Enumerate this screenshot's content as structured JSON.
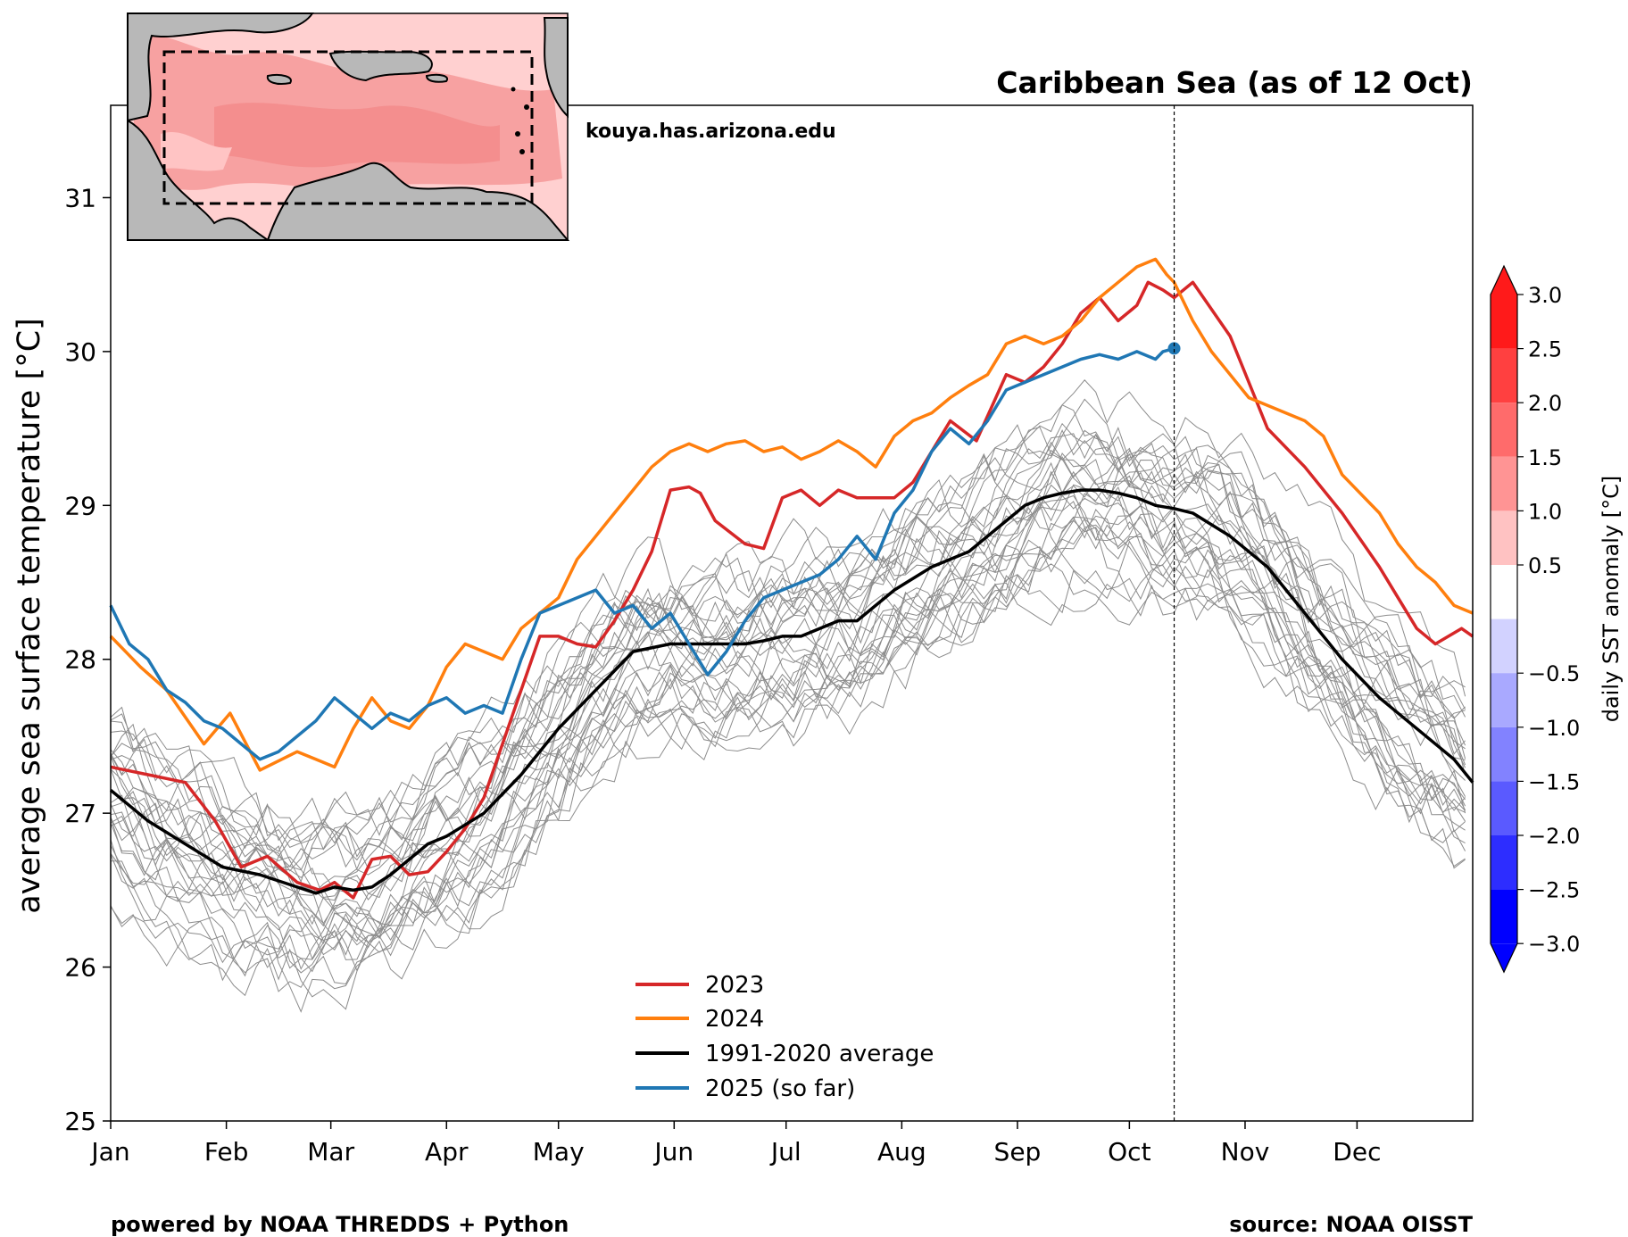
{
  "chart_data": {
    "type": "line",
    "title": "Caribbean Sea (as of 12 Oct)",
    "ylabel": "average sea surface temperature [°C]",
    "xlabel": "",
    "ylim": [
      25,
      31.6
    ],
    "xlim": [
      0,
      365
    ],
    "yticks": [
      25,
      26,
      27,
      28,
      29,
      30,
      31
    ],
    "x_ticks": [
      {
        "label": "Jan",
        "day": 0
      },
      {
        "label": "Feb",
        "day": 31
      },
      {
        "label": "Mar",
        "day": 59
      },
      {
        "label": "Apr",
        "day": 90
      },
      {
        "label": "May",
        "day": 120
      },
      {
        "label": "Jun",
        "day": 151
      },
      {
        "label": "Jul",
        "day": 181
      },
      {
        "label": "Aug",
        "day": 212
      },
      {
        "label": "Sep",
        "day": 243
      },
      {
        "label": "Oct",
        "day": 273
      },
      {
        "label": "Nov",
        "day": 304
      },
      {
        "label": "Dec",
        "day": 334
      }
    ],
    "current_day_marker": 285,
    "grid": false,
    "legend_position": "bottom-center",
    "series": [
      {
        "name": "2023",
        "color": "#d62728",
        "width": 3.5,
        "x": [
          0,
          10,
          20,
          28,
          35,
          42,
          50,
          56,
          60,
          65,
          70,
          75,
          80,
          85,
          90,
          95,
          100,
          105,
          110,
          115,
          120,
          125,
          130,
          135,
          140,
          145,
          150,
          155,
          158,
          162,
          170,
          175,
          180,
          185,
          190,
          195,
          200,
          210,
          215,
          220,
          225,
          232,
          240,
          245,
          250,
          255,
          260,
          265,
          270,
          275,
          278,
          282,
          285,
          290,
          300,
          305,
          310,
          320,
          330,
          340,
          345,
          350,
          355,
          362,
          365
        ],
        "y": [
          27.3,
          27.25,
          27.2,
          26.95,
          26.65,
          26.72,
          26.55,
          26.5,
          26.55,
          26.45,
          26.7,
          26.72,
          26.6,
          26.62,
          26.75,
          26.9,
          27.1,
          27.45,
          27.8,
          28.15,
          28.15,
          28.1,
          28.08,
          28.25,
          28.45,
          28.7,
          29.1,
          29.12,
          29.08,
          28.9,
          28.75,
          28.72,
          29.05,
          29.1,
          29.0,
          29.1,
          29.05,
          29.05,
          29.15,
          29.35,
          29.55,
          29.42,
          29.85,
          29.8,
          29.9,
          30.05,
          30.25,
          30.35,
          30.2,
          30.3,
          30.45,
          30.4,
          30.35,
          30.45,
          30.1,
          29.8,
          29.5,
          29.25,
          28.95,
          28.6,
          28.4,
          28.2,
          28.1,
          28.2,
          28.15
        ]
      },
      {
        "name": "2024",
        "color": "#ff7f0e",
        "width": 3.5,
        "x": [
          0,
          8,
          15,
          25,
          32,
          40,
          50,
          55,
          60,
          65,
          70,
          75,
          80,
          85,
          90,
          95,
          100,
          105,
          110,
          115,
          120,
          125,
          130,
          135,
          140,
          145,
          150,
          155,
          160,
          165,
          170,
          175,
          180,
          185,
          190,
          195,
          200,
          205,
          210,
          215,
          220,
          225,
          230,
          235,
          240,
          245,
          250,
          255,
          260,
          265,
          270,
          275,
          280,
          283,
          285,
          290,
          295,
          300,
          305,
          310,
          320,
          325,
          330,
          340,
          345,
          350,
          355,
          360,
          365
        ],
        "y": [
          28.15,
          27.95,
          27.8,
          27.45,
          27.65,
          27.28,
          27.4,
          27.35,
          27.3,
          27.55,
          27.75,
          27.6,
          27.55,
          27.7,
          27.95,
          28.1,
          28.05,
          28.0,
          28.2,
          28.3,
          28.4,
          28.65,
          28.8,
          28.95,
          29.1,
          29.25,
          29.35,
          29.4,
          29.35,
          29.4,
          29.42,
          29.35,
          29.38,
          29.3,
          29.35,
          29.42,
          29.35,
          29.25,
          29.45,
          29.55,
          29.6,
          29.7,
          29.78,
          29.85,
          30.05,
          30.1,
          30.05,
          30.1,
          30.2,
          30.35,
          30.45,
          30.55,
          30.6,
          30.5,
          30.45,
          30.2,
          30.0,
          29.85,
          29.7,
          29.65,
          29.55,
          29.45,
          29.2,
          28.95,
          28.75,
          28.6,
          28.5,
          28.35,
          28.3
        ]
      },
      {
        "name": "1991-2020 average",
        "color": "#000000",
        "width": 3.5,
        "x": [
          0,
          10,
          20,
          30,
          40,
          50,
          55,
          60,
          65,
          70,
          75,
          80,
          85,
          90,
          100,
          110,
          120,
          130,
          140,
          150,
          160,
          170,
          175,
          180,
          185,
          190,
          195,
          200,
          210,
          220,
          230,
          240,
          245,
          250,
          255,
          260,
          265,
          270,
          275,
          280,
          285,
          290,
          300,
          310,
          320,
          330,
          340,
          350,
          360,
          365
        ],
        "y": [
          27.15,
          26.95,
          26.8,
          26.65,
          26.6,
          26.52,
          26.48,
          26.52,
          26.5,
          26.52,
          26.6,
          26.7,
          26.8,
          26.85,
          27.0,
          27.25,
          27.55,
          27.8,
          28.05,
          28.1,
          28.1,
          28.1,
          28.12,
          28.15,
          28.15,
          28.2,
          28.25,
          28.25,
          28.45,
          28.6,
          28.7,
          28.9,
          29.0,
          29.05,
          29.08,
          29.1,
          29.1,
          29.08,
          29.05,
          29.0,
          28.98,
          28.95,
          28.8,
          28.6,
          28.3,
          28.0,
          27.75,
          27.55,
          27.35,
          27.2
        ]
      },
      {
        "name": "2025 (so far)",
        "color": "#1f77b4",
        "width": 3.5,
        "x": [
          0,
          5,
          10,
          15,
          20,
          25,
          30,
          35,
          40,
          45,
          50,
          55,
          60,
          65,
          70,
          75,
          80,
          85,
          90,
          95,
          100,
          105,
          110,
          115,
          120,
          125,
          130,
          135,
          140,
          145,
          150,
          155,
          160,
          165,
          170,
          175,
          180,
          185,
          190,
          195,
          200,
          205,
          210,
          215,
          220,
          225,
          230,
          235,
          240,
          245,
          250,
          255,
          260,
          265,
          270,
          275,
          280,
          282,
          285
        ],
        "y": [
          28.35,
          28.1,
          28.0,
          27.8,
          27.72,
          27.6,
          27.55,
          27.45,
          27.35,
          27.4,
          27.5,
          27.6,
          27.75,
          27.65,
          27.55,
          27.65,
          27.6,
          27.7,
          27.75,
          27.65,
          27.7,
          27.65,
          28.0,
          28.3,
          28.35,
          28.4,
          28.45,
          28.3,
          28.35,
          28.2,
          28.3,
          28.1,
          27.9,
          28.05,
          28.25,
          28.4,
          28.45,
          28.5,
          28.55,
          28.65,
          28.8,
          28.65,
          28.95,
          29.1,
          29.35,
          29.5,
          29.4,
          29.55,
          29.75,
          29.8,
          29.85,
          29.9,
          29.95,
          29.98,
          29.95,
          30.0,
          29.95,
          30.0,
          30.02
        ]
      }
    ],
    "colorbar": {
      "label": "daily SST anomaly [°C]",
      "ticks": [
        "3.0",
        "2.5",
        "2.0",
        "1.5",
        "1.0",
        "0.5",
        "−0.5",
        "−1.0",
        "−1.5",
        "−2.0",
        "−2.5",
        "−3.0"
      ],
      "colors": [
        "#ff1a1a",
        "#ff4040",
        "#ff6b6b",
        "#ff9494",
        "#ffc2c2",
        "#ffffff",
        "#d2d2ff",
        "#a9a9ff",
        "#8282ff",
        "#5a5aff",
        "#2d2dff",
        "#0000ff"
      ]
    }
  },
  "annotations": {
    "site": "kouya.has.arizona.edu",
    "powered_by": "powered by NOAA THREDDS + Python",
    "source": "source: NOAA OISST"
  }
}
